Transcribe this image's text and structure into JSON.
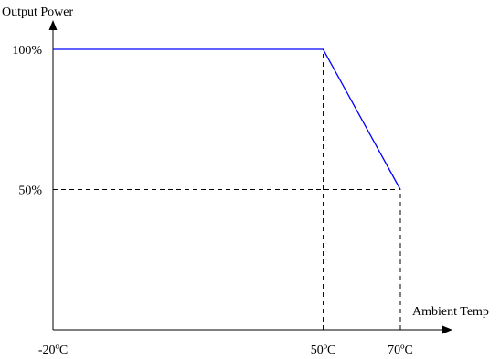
{
  "chart_data": {
    "type": "line",
    "title": "",
    "ylabel": "Output Power",
    "xlabel": "Ambient Temp",
    "x": [
      -20,
      50,
      70
    ],
    "y": [
      100,
      100,
      50
    ],
    "series": [
      {
        "x": [
          -20,
          50,
          70
        ],
        "y": [
          100,
          100,
          50
        ],
        "color": "#0000ff"
      }
    ],
    "x_ticks": [
      {
        "value": -20,
        "label": "-20ºC"
      },
      {
        "value": 50,
        "label": "50ºC"
      },
      {
        "value": 70,
        "label": "70ºC"
      }
    ],
    "y_ticks": [
      {
        "value": 100,
        "label": "100%"
      },
      {
        "value": 50,
        "label": "50%"
      }
    ],
    "reference_lines": [
      {
        "orientation": "vertical",
        "value": 50,
        "from": 0,
        "to": 100
      },
      {
        "orientation": "vertical",
        "value": 70,
        "from": 0,
        "to": 50
      },
      {
        "orientation": "horizontal",
        "value": 50,
        "from": -20,
        "to": 70
      }
    ],
    "grid": false,
    "legend": "none",
    "line_color": "#0000ff",
    "axis_color": "#000000"
  }
}
